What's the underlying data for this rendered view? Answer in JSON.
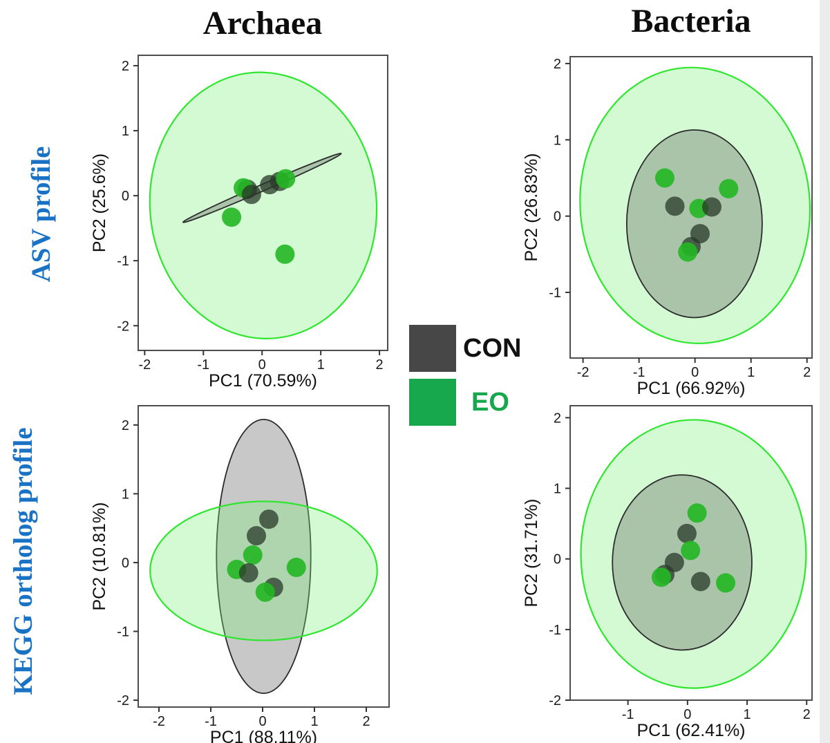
{
  "headers": {
    "col1": "Archaea",
    "col2": "Bacteria"
  },
  "row_labels": {
    "row1": "ASV profile",
    "row2": "KEGG ortholog profile"
  },
  "legend": {
    "con_label": "CON",
    "eo_label": "EO"
  },
  "colors": {
    "con_point": "rgba(40,56,40,0.75)",
    "eo_point": "rgba(35,183,35,0.9)",
    "eo_ellipse_fill": "rgba(120,240,120,0.33)",
    "eo_ellipse_stroke": "#2ee62e",
    "con_ellipse_fill": "rgba(85,85,85,0.32)",
    "con_ellipse_stroke": "#2b2b2b",
    "legend_con": "#474747",
    "legend_eo": "#17a84e",
    "legend_con_text": "#111111",
    "legend_eo_text": "#17a84e",
    "row_label_blue": "#1a72c4",
    "panel_border": "#4d4d4d"
  },
  "chart_data": [
    {
      "id": "archaea-asv",
      "type": "scatter",
      "column": "Archaea",
      "row": "ASV profile",
      "xlabel": "PC1 (70.59%)",
      "ylabel": "PC2 (25.6%)",
      "xlim": [
        -2.11,
        2.14
      ],
      "ylim": [
        -2.38,
        2.16
      ],
      "xticks": [
        -2,
        -1,
        0,
        1,
        2
      ],
      "yticks": [
        -2,
        -1,
        0,
        1,
        2
      ],
      "legend_position": "none",
      "grid": false,
      "ellipses": [
        {
          "group": "EO",
          "cx": 0.02,
          "cy": -0.15,
          "rx": 1.93,
          "ry": 2.05,
          "rot": -5
        },
        {
          "group": "CON",
          "cx": 0.0,
          "cy": 0.12,
          "rx": 1.47,
          "ry": 0.05,
          "rot": -23.5
        }
      ],
      "points": [
        {
          "group": "CON",
          "x": -0.25,
          "y": 0.1
        },
        {
          "group": "EO",
          "x": -0.32,
          "y": 0.12
        },
        {
          "group": "CON",
          "x": -0.18,
          "y": 0.02
        },
        {
          "group": "CON",
          "x": 0.13,
          "y": 0.17
        },
        {
          "group": "CON",
          "x": 0.3,
          "y": 0.22
        },
        {
          "group": "EO",
          "x": 0.4,
          "y": 0.26
        },
        {
          "group": "EO",
          "x": -0.52,
          "y": -0.33
        },
        {
          "group": "EO",
          "x": 0.39,
          "y": -0.9
        }
      ]
    },
    {
      "id": "bacteria-asv",
      "type": "scatter",
      "column": "Bacteria",
      "row": "ASV profile",
      "xlabel": "PC1 (66.92%)",
      "ylabel": "PC2 (26.83%)",
      "xlim": [
        -2.23,
        2.09
      ],
      "ylim": [
        -1.86,
        2.09
      ],
      "xticks": [
        -2,
        -1,
        0,
        1,
        2
      ],
      "yticks": [
        -1,
        0,
        1,
        2
      ],
      "legend_position": "none",
      "grid": false,
      "ellipses": [
        {
          "group": "EO",
          "cx": 0.0,
          "cy": 0.14,
          "rx": 2.05,
          "ry": 1.81,
          "rot": -5
        },
        {
          "group": "CON",
          "cx": -0.01,
          "cy": -0.1,
          "rx": 1.21,
          "ry": 1.23,
          "rot": 0
        }
      ],
      "points": [
        {
          "group": "CON",
          "x": -0.36,
          "y": 0.13
        },
        {
          "group": "CON",
          "x": 0.09,
          "y": -0.23
        },
        {
          "group": "EO",
          "x": 0.07,
          "y": 0.1
        },
        {
          "group": "CON",
          "x": 0.3,
          "y": 0.12
        },
        {
          "group": "EO",
          "x": -0.54,
          "y": 0.5
        },
        {
          "group": "EO",
          "x": 0.6,
          "y": 0.36
        },
        {
          "group": "CON",
          "x": -0.07,
          "y": -0.4
        },
        {
          "group": "EO",
          "x": -0.13,
          "y": -0.47
        }
      ]
    },
    {
      "id": "archaea-kegg",
      "type": "scatter",
      "column": "Archaea",
      "row": "KEGG ortholog profile",
      "xlabel": "PC1 (88.11%)",
      "ylabel": "PC2 (10.81%)",
      "xlim": [
        -2.4,
        2.44
      ],
      "ylim": [
        -2.1,
        2.28
      ],
      "xticks": [
        -2,
        -1,
        0,
        1,
        2
      ],
      "yticks": [
        -2,
        -1,
        0,
        1,
        2
      ],
      "legend_position": "none",
      "grid": false,
      "ellipses": [
        {
          "group": "CON",
          "cx": 0.02,
          "cy": 0.09,
          "rx": 0.91,
          "ry": 1.99,
          "rot": 0
        },
        {
          "group": "EO",
          "cx": 0.02,
          "cy": -0.12,
          "rx": 2.19,
          "ry": 1.01,
          "rot": 0
        }
      ],
      "points": [
        {
          "group": "CON",
          "x": 0.12,
          "y": 0.63
        },
        {
          "group": "CON",
          "x": -0.12,
          "y": 0.39
        },
        {
          "group": "EO",
          "x": -0.19,
          "y": 0.11
        },
        {
          "group": "EO",
          "x": -0.5,
          "y": -0.1
        },
        {
          "group": "CON",
          "x": -0.27,
          "y": -0.15
        },
        {
          "group": "CON",
          "x": 0.21,
          "y": -0.36
        },
        {
          "group": "EO",
          "x": 0.05,
          "y": -0.43
        },
        {
          "group": "EO",
          "x": 0.65,
          "y": -0.07
        }
      ]
    },
    {
      "id": "bacteria-kegg",
      "type": "scatter",
      "column": "Bacteria",
      "row": "KEGG ortholog profile",
      "xlabel": "PC1 (62.41%)",
      "ylabel": "PC2 (31.71%)",
      "xlim": [
        -1.97,
        2.09
      ],
      "ylim": [
        -2.0,
        2.17
      ],
      "xticks": [
        -1,
        0,
        1,
        2
      ],
      "yticks": [
        -2,
        -1,
        0,
        1,
        2
      ],
      "legend_position": "none",
      "grid": false,
      "ellipses": [
        {
          "group": "EO",
          "cx": 0.1,
          "cy": 0.07,
          "rx": 1.89,
          "ry": 1.9,
          "rot": 0
        },
        {
          "group": "CON",
          "cx": -0.09,
          "cy": -0.05,
          "rx": 1.17,
          "ry": 1.24,
          "rot": 0
        }
      ],
      "points": [
        {
          "group": "CON",
          "x": -0.01,
          "y": 0.36
        },
        {
          "group": "EO",
          "x": 0.16,
          "y": 0.65
        },
        {
          "group": "CON",
          "x": -0.22,
          "y": -0.05
        },
        {
          "group": "CON",
          "x": -0.38,
          "y": -0.22
        },
        {
          "group": "EO",
          "x": -0.44,
          "y": -0.26
        },
        {
          "group": "EO",
          "x": 0.05,
          "y": 0.12
        },
        {
          "group": "CON",
          "x": 0.22,
          "y": -0.32
        },
        {
          "group": "EO",
          "x": 0.64,
          "y": -0.34
        }
      ]
    }
  ]
}
